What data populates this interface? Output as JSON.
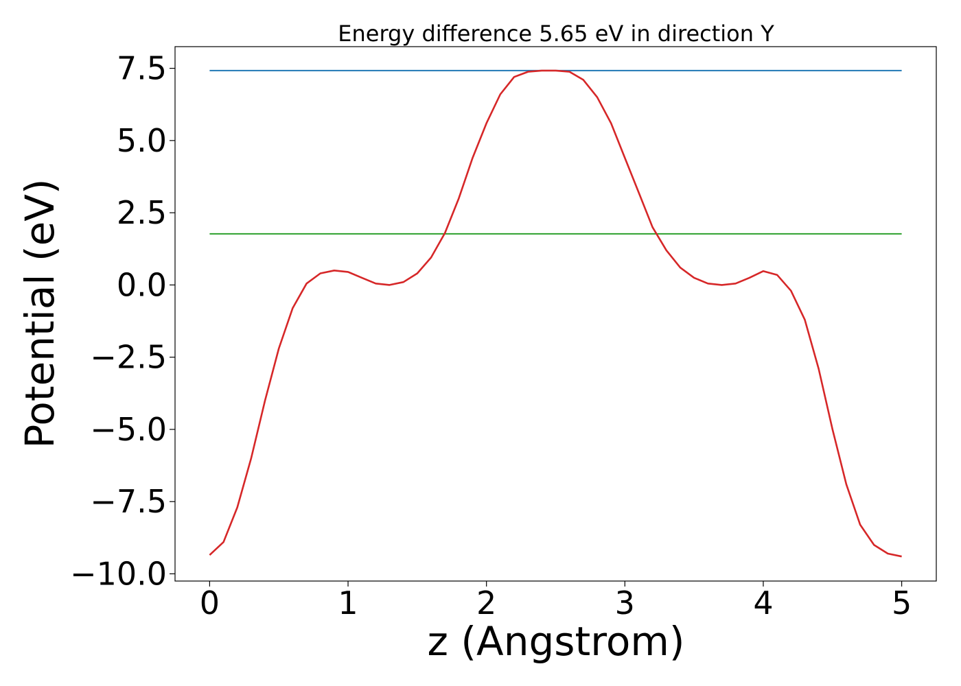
{
  "chart_data": {
    "type": "line",
    "title": "Energy difference 5.65 eV in direction Y",
    "xlabel": "z (Angstrom)",
    "ylabel": "Potential (eV)",
    "xlim": [
      -0.25,
      5.25
    ],
    "ylim": [
      -10.25,
      8.25
    ],
    "x_ticks": [
      0,
      1,
      2,
      3,
      4,
      5
    ],
    "x_tick_labels": [
      "0",
      "1",
      "2",
      "3",
      "4",
      "5"
    ],
    "y_ticks": [
      7.5,
      5.0,
      2.5,
      0.0,
      -2.5,
      -5.0,
      -7.5,
      -10.0
    ],
    "y_tick_labels": [
      "7.5",
      "5.0",
      "2.5",
      "0.0",
      "−2.5",
      "−5.0",
      "−7.5",
      "−10.0"
    ],
    "grid": false,
    "series": [
      {
        "color": "#1f77b4",
        "x": [
          0,
          5
        ],
        "y": [
          7.42,
          7.42
        ]
      },
      {
        "color": "#2ca02c",
        "x": [
          0,
          5
        ],
        "y": [
          1.77,
          1.77
        ]
      },
      {
        "color": "#d62728",
        "x": [
          0,
          0.1,
          0.2,
          0.3,
          0.4,
          0.5,
          0.6,
          0.7,
          0.8,
          0.9,
          1.0,
          1.1,
          1.2,
          1.3,
          1.4,
          1.5,
          1.6,
          1.7,
          1.8,
          1.9,
          2.0,
          2.1,
          2.2,
          2.3,
          2.4,
          2.5,
          2.6,
          2.7,
          2.8,
          2.9,
          3.0,
          3.1,
          3.2,
          3.3,
          3.4,
          3.5,
          3.6,
          3.7,
          3.8,
          3.9,
          4.0,
          4.1,
          4.2,
          4.3,
          4.4,
          4.5,
          4.6,
          4.7,
          4.8,
          4.9,
          5.0
        ],
        "y": [
          -9.35,
          -8.9,
          -7.7,
          -6.0,
          -4.0,
          -2.2,
          -0.8,
          0.05,
          0.4,
          0.5,
          0.45,
          0.25,
          0.05,
          0.0,
          0.1,
          0.4,
          0.95,
          1.8,
          3.0,
          4.4,
          5.6,
          6.6,
          7.2,
          7.38,
          7.42,
          7.42,
          7.38,
          7.1,
          6.5,
          5.6,
          4.4,
          3.2,
          2.0,
          1.2,
          0.6,
          0.25,
          0.05,
          0.0,
          0.05,
          0.25,
          0.48,
          0.35,
          -0.2,
          -1.2,
          -2.9,
          -5.0,
          -6.9,
          -8.3,
          -9.0,
          -9.3,
          -9.4
        ]
      }
    ]
  }
}
